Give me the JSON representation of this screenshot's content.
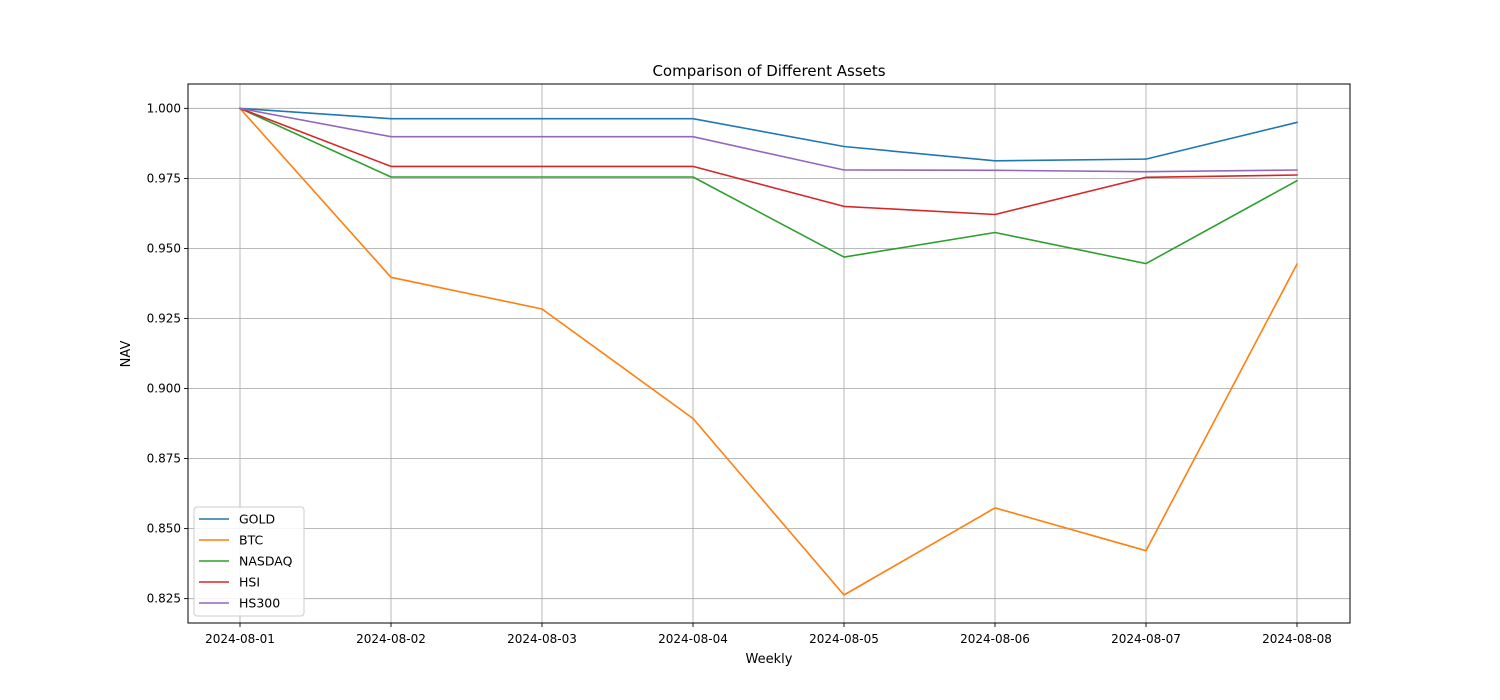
{
  "chart_data": {
    "type": "line",
    "title": "Comparison of Different Assets",
    "xlabel": "Weekly",
    "ylabel": "NAV",
    "x": [
      "2024-08-01",
      "2024-08-02",
      "2024-08-03",
      "2024-08-04",
      "2024-08-05",
      "2024-08-06",
      "2024-08-07",
      "2024-08-08"
    ],
    "ylim": [
      0.8163,
      1.0087
    ],
    "yticks": [
      0.825,
      0.85,
      0.875,
      0.9,
      0.925,
      0.95,
      0.975,
      1.0
    ],
    "ytick_labels": [
      "0.825",
      "0.850",
      "0.875",
      "0.900",
      "0.925",
      "0.950",
      "0.975",
      "1.000"
    ],
    "grid": true,
    "legend_position": "lower-left",
    "series": [
      {
        "name": "GOLD",
        "color": "#1f77b4",
        "values": [
          1.0,
          0.9963,
          0.9963,
          0.9963,
          0.9864,
          0.9813,
          0.9819,
          0.995
        ]
      },
      {
        "name": "BTC",
        "color": "#ff7f0e",
        "values": [
          1.0,
          0.9397,
          0.9284,
          0.8893,
          0.8263,
          0.8574,
          0.8421,
          0.9444
        ]
      },
      {
        "name": "NASDAQ",
        "color": "#2ca02c",
        "values": [
          1.0,
          0.9755,
          0.9755,
          0.9755,
          0.9469,
          0.9557,
          0.9446,
          0.9742
        ]
      },
      {
        "name": "HSI",
        "color": "#d62728",
        "values": [
          1.0,
          0.9793,
          0.9793,
          0.9793,
          0.965,
          0.9621,
          0.9754,
          0.9762
        ]
      },
      {
        "name": "HS300",
        "color": "#9467bd",
        "values": [
          1.0,
          0.9899,
          0.9899,
          0.9899,
          0.978,
          0.9779,
          0.9774,
          0.978
        ]
      }
    ]
  }
}
